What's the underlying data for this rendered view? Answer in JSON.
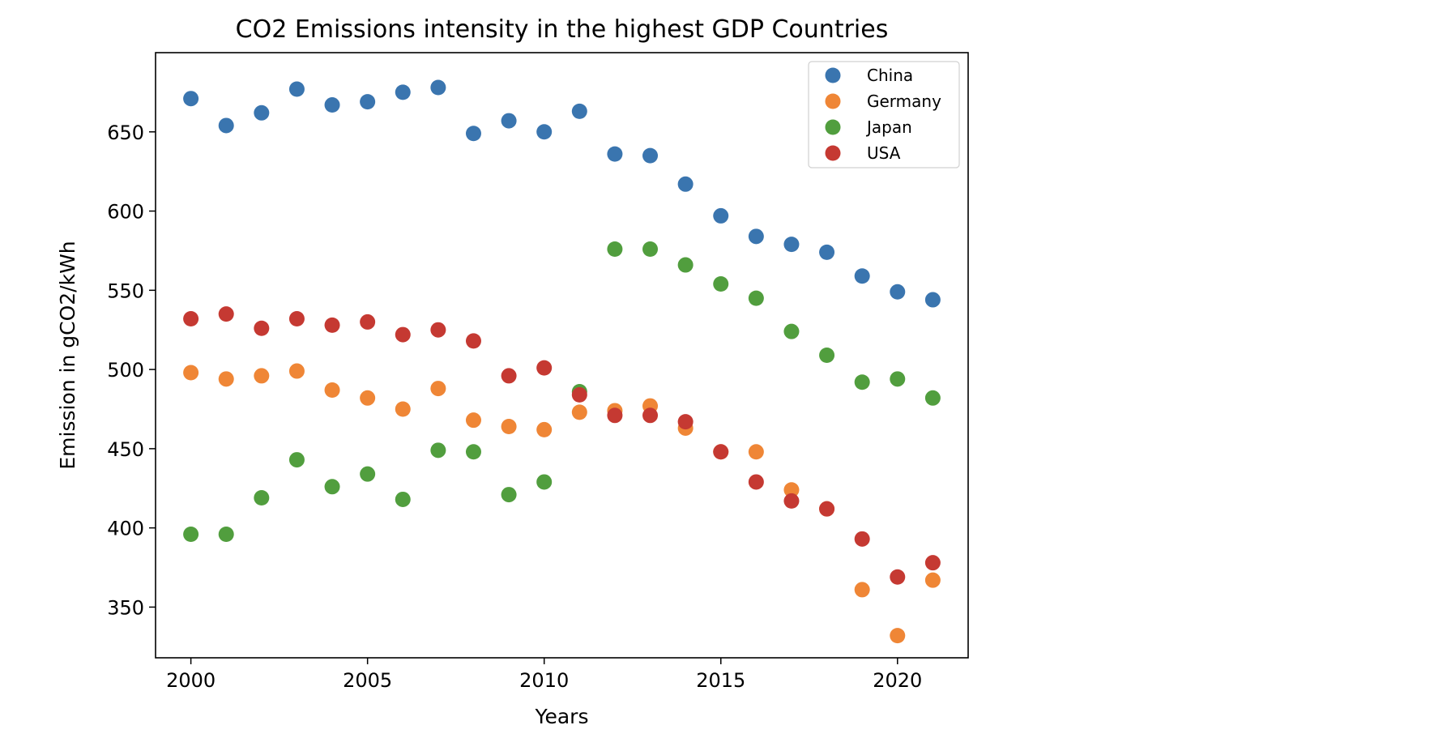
{
  "chart_data": {
    "type": "scatter",
    "title": "CO2 Emissions intensity in the highest GDP Countries",
    "xlabel": "Years",
    "ylabel": "Emission in gCO2/kWh",
    "xlim": [
      1999,
      2022
    ],
    "ylim": [
      318,
      700
    ],
    "xticks": [
      2000,
      2005,
      2010,
      2015,
      2020
    ],
    "yticks": [
      350,
      400,
      450,
      500,
      550,
      600,
      650
    ],
    "grid": false,
    "legend_position": "top-right",
    "x": [
      2000,
      2001,
      2002,
      2003,
      2004,
      2005,
      2006,
      2007,
      2008,
      2009,
      2010,
      2011,
      2012,
      2013,
      2014,
      2015,
      2016,
      2017,
      2018,
      2019,
      2020,
      2021
    ],
    "series": [
      {
        "name": "China",
        "color": "#3a75af",
        "x": [
          2000,
          2001,
          2002,
          2003,
          2004,
          2005,
          2006,
          2007,
          2008,
          2009,
          2010,
          2011,
          2012,
          2013,
          2014,
          2015,
          2016,
          2017,
          2018,
          2019,
          2020,
          2021
        ],
        "values": [
          671,
          654,
          662,
          677,
          667,
          669,
          675,
          678,
          649,
          657,
          650,
          663,
          636,
          635,
          617,
          597,
          584,
          579,
          574,
          559,
          549,
          544
        ]
      },
      {
        "name": "Germany",
        "color": "#ef8636",
        "x": [
          2000,
          2001,
          2002,
          2003,
          2004,
          2005,
          2006,
          2007,
          2008,
          2009,
          2010,
          2011,
          2012,
          2013,
          2014,
          2015,
          2016,
          2017,
          2018,
          2019,
          2020,
          2021
        ],
        "values": [
          498,
          494,
          496,
          499,
          487,
          482,
          475,
          488,
          468,
          464,
          462,
          473,
          474,
          477,
          463,
          448,
          448,
          424,
          412,
          361,
          332,
          367
        ]
      },
      {
        "name": "Japan",
        "color": "#519e3e",
        "x": [
          2000,
          2001,
          2002,
          2003,
          2004,
          2005,
          2006,
          2007,
          2008,
          2009,
          2010,
          2011,
          2012,
          2013,
          2014,
          2015,
          2016,
          2017,
          2018,
          2019,
          2020,
          2021
        ],
        "values": [
          396,
          396,
          419,
          443,
          426,
          434,
          418,
          449,
          448,
          421,
          429,
          486,
          576,
          576,
          566,
          554,
          545,
          524,
          509,
          492,
          494,
          482
        ]
      },
      {
        "name": "USA",
        "color": "#c53932",
        "x": [
          2000,
          2001,
          2002,
          2003,
          2004,
          2005,
          2006,
          2007,
          2008,
          2009,
          2010,
          2011,
          2012,
          2013,
          2014,
          2015,
          2016,
          2017,
          2018,
          2019,
          2020,
          2021
        ],
        "values": [
          532,
          535,
          526,
          532,
          528,
          530,
          522,
          525,
          518,
          496,
          501,
          484,
          471,
          471,
          467,
          448,
          429,
          417,
          412,
          393,
          369,
          378
        ]
      }
    ]
  }
}
